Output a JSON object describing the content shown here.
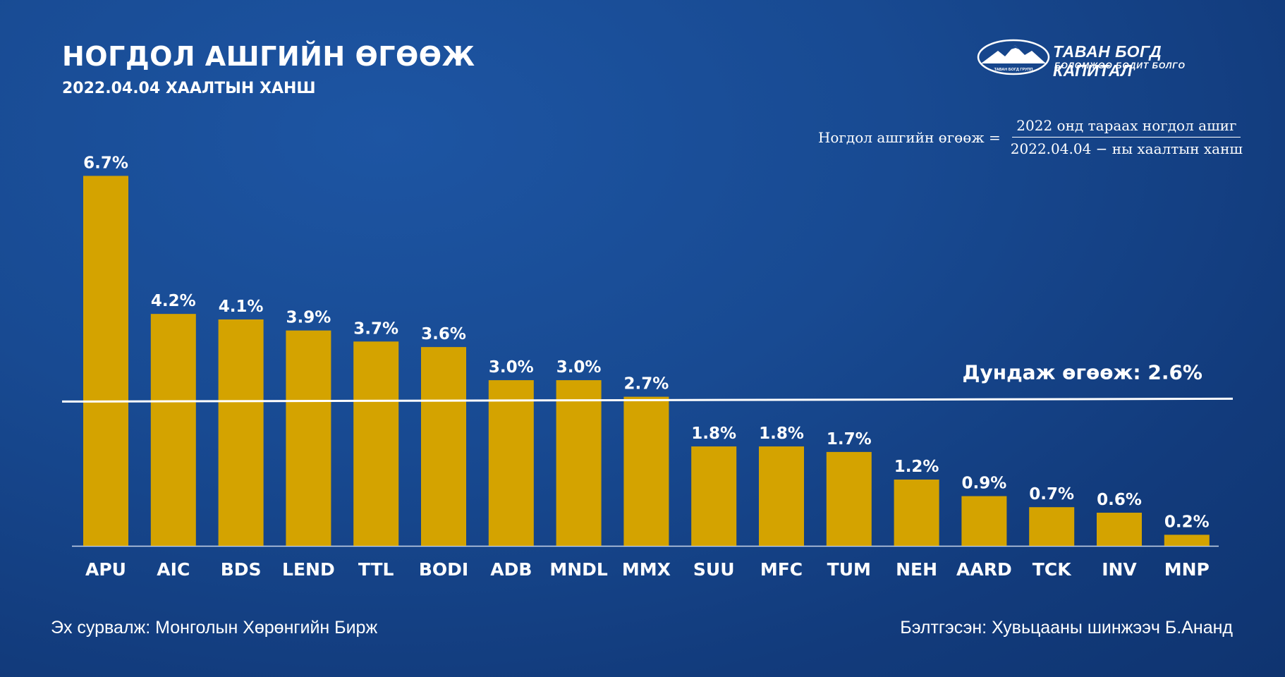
{
  "header": {
    "title": "НОГДОЛ АШГИЙН ӨГӨӨЖ",
    "subtitle": "2022.04.04 ХААЛТЫН ХАНШ"
  },
  "logo": {
    "brand": "ТАВАН БОГД КАПИТАЛ",
    "tagline": "БОЛОМЖОО БОДИТ БОЛГО",
    "emblem_text": "ТАВАН БОГД ГРУПП"
  },
  "formula": {
    "lhs": "Ногдол ашгийн өгөөж =",
    "numerator": "2022 онд тараах ногдол ашиг",
    "denominator": "2022.04.04 − ны хаалтын ханш"
  },
  "chart_data": {
    "type": "bar",
    "categories": [
      "APU",
      "AIC",
      "BDS",
      "LEND",
      "TTL",
      "BODI",
      "ADB",
      "MNDL",
      "MMX",
      "SUU",
      "MFC",
      "TUM",
      "NEH",
      "AARD",
      "TCK",
      "INV",
      "MNP"
    ],
    "values": [
      6.7,
      4.2,
      4.1,
      3.9,
      3.7,
      3.6,
      3.0,
      3.0,
      2.7,
      1.8,
      1.8,
      1.7,
      1.2,
      0.9,
      0.7,
      0.6,
      0.2
    ],
    "value_labels": [
      "6.7%",
      "4.2%",
      "4.1%",
      "3.9%",
      "3.7%",
      "3.6%",
      "3.0%",
      "3.0%",
      "2.7%",
      "1.8%",
      "1.8%",
      "1.7%",
      "1.2%",
      "0.9%",
      "0.7%",
      "0.6%",
      "0.2%"
    ],
    "average": 2.6,
    "average_label": "Дундаж өгөөж: 2.6%",
    "ylim": [
      0,
      7
    ],
    "grid": false,
    "bar_color": "#d4a300",
    "average_line_color": "#ffffff"
  },
  "footer": {
    "source": "Эх сурвалж: Монголын Хөрөнгийн Бирж",
    "author": "Бэлтгэсэн: Хувьцааны шинжээч Б.Ананд"
  },
  "colors": {
    "background": "#184a92",
    "bar": "#d4a300",
    "text": "#ffffff"
  }
}
